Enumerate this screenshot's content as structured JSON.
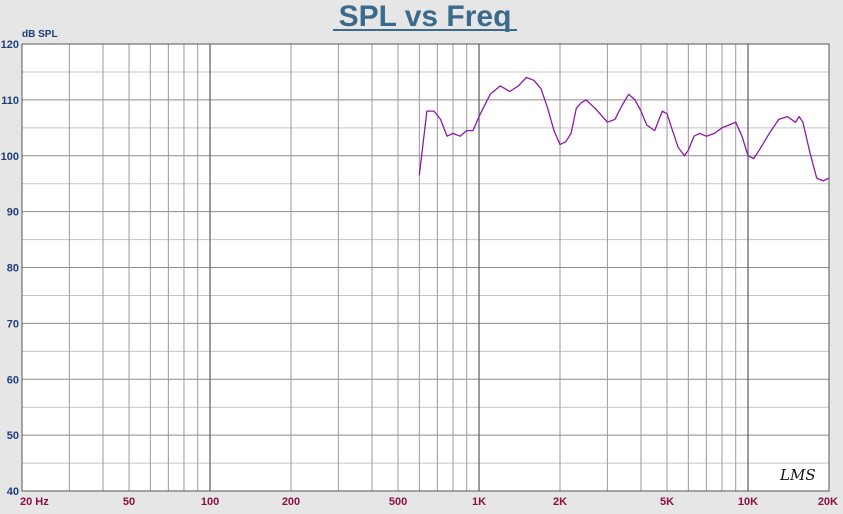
{
  "chart_data": {
    "type": "line",
    "title": "SPL vs Freq",
    "ylabel": "dB SPL",
    "xscale": "log",
    "xlim": [
      20,
      20000
    ],
    "ylim": [
      40,
      120
    ],
    "grid": true,
    "y_ticks": [
      40,
      50,
      60,
      70,
      80,
      90,
      100,
      110,
      120
    ],
    "x_ticks": [
      {
        "value": 20,
        "label": "20 Hz"
      },
      {
        "value": 50,
        "label": "50"
      },
      {
        "value": 100,
        "label": "100"
      },
      {
        "value": 200,
        "label": "200"
      },
      {
        "value": 500,
        "label": "500"
      },
      {
        "value": 1000,
        "label": "1K"
      },
      {
        "value": 2000,
        "label": "2K"
      },
      {
        "value": 5000,
        "label": "5K"
      },
      {
        "value": 10000,
        "label": "10K"
      },
      {
        "value": 20000,
        "label": "20K"
      }
    ],
    "series": [
      {
        "color": "#8b1aa8",
        "x": [
          600,
          640,
          680,
          720,
          760,
          800,
          850,
          900,
          950,
          1000,
          1100,
          1200,
          1250,
          1300,
          1400,
          1500,
          1600,
          1700,
          1800,
          1900,
          2000,
          2100,
          2200,
          2300,
          2400,
          2500,
          2700,
          3000,
          3200,
          3400,
          3600,
          3800,
          4000,
          4200,
          4500,
          4800,
          5000,
          5200,
          5500,
          5800,
          6000,
          6300,
          6600,
          7000,
          7500,
          8000,
          8500,
          9000,
          9500,
          10000,
          10500,
          11000,
          12000,
          13000,
          14000,
          15000,
          15500,
          16000,
          17000,
          18000,
          19000,
          20000
        ],
        "y": [
          96.5,
          108,
          108,
          106.5,
          103.5,
          104,
          103.5,
          104.5,
          104.5,
          107,
          111,
          112.5,
          112,
          111.5,
          112.5,
          114,
          113.5,
          112,
          108.5,
          104.5,
          102,
          102.5,
          104,
          108.5,
          109.5,
          110,
          108.5,
          106,
          106.5,
          109,
          111,
          110,
          108,
          105.5,
          104.5,
          108,
          107.5,
          105,
          101.5,
          100,
          101,
          103.5,
          104,
          103.5,
          104,
          105,
          105.5,
          106,
          103.5,
          100,
          99.5,
          101,
          104,
          106.5,
          107,
          106,
          107,
          106,
          100.5,
          96,
          95.5,
          96
        ]
      }
    ],
    "logo": "LMS"
  }
}
